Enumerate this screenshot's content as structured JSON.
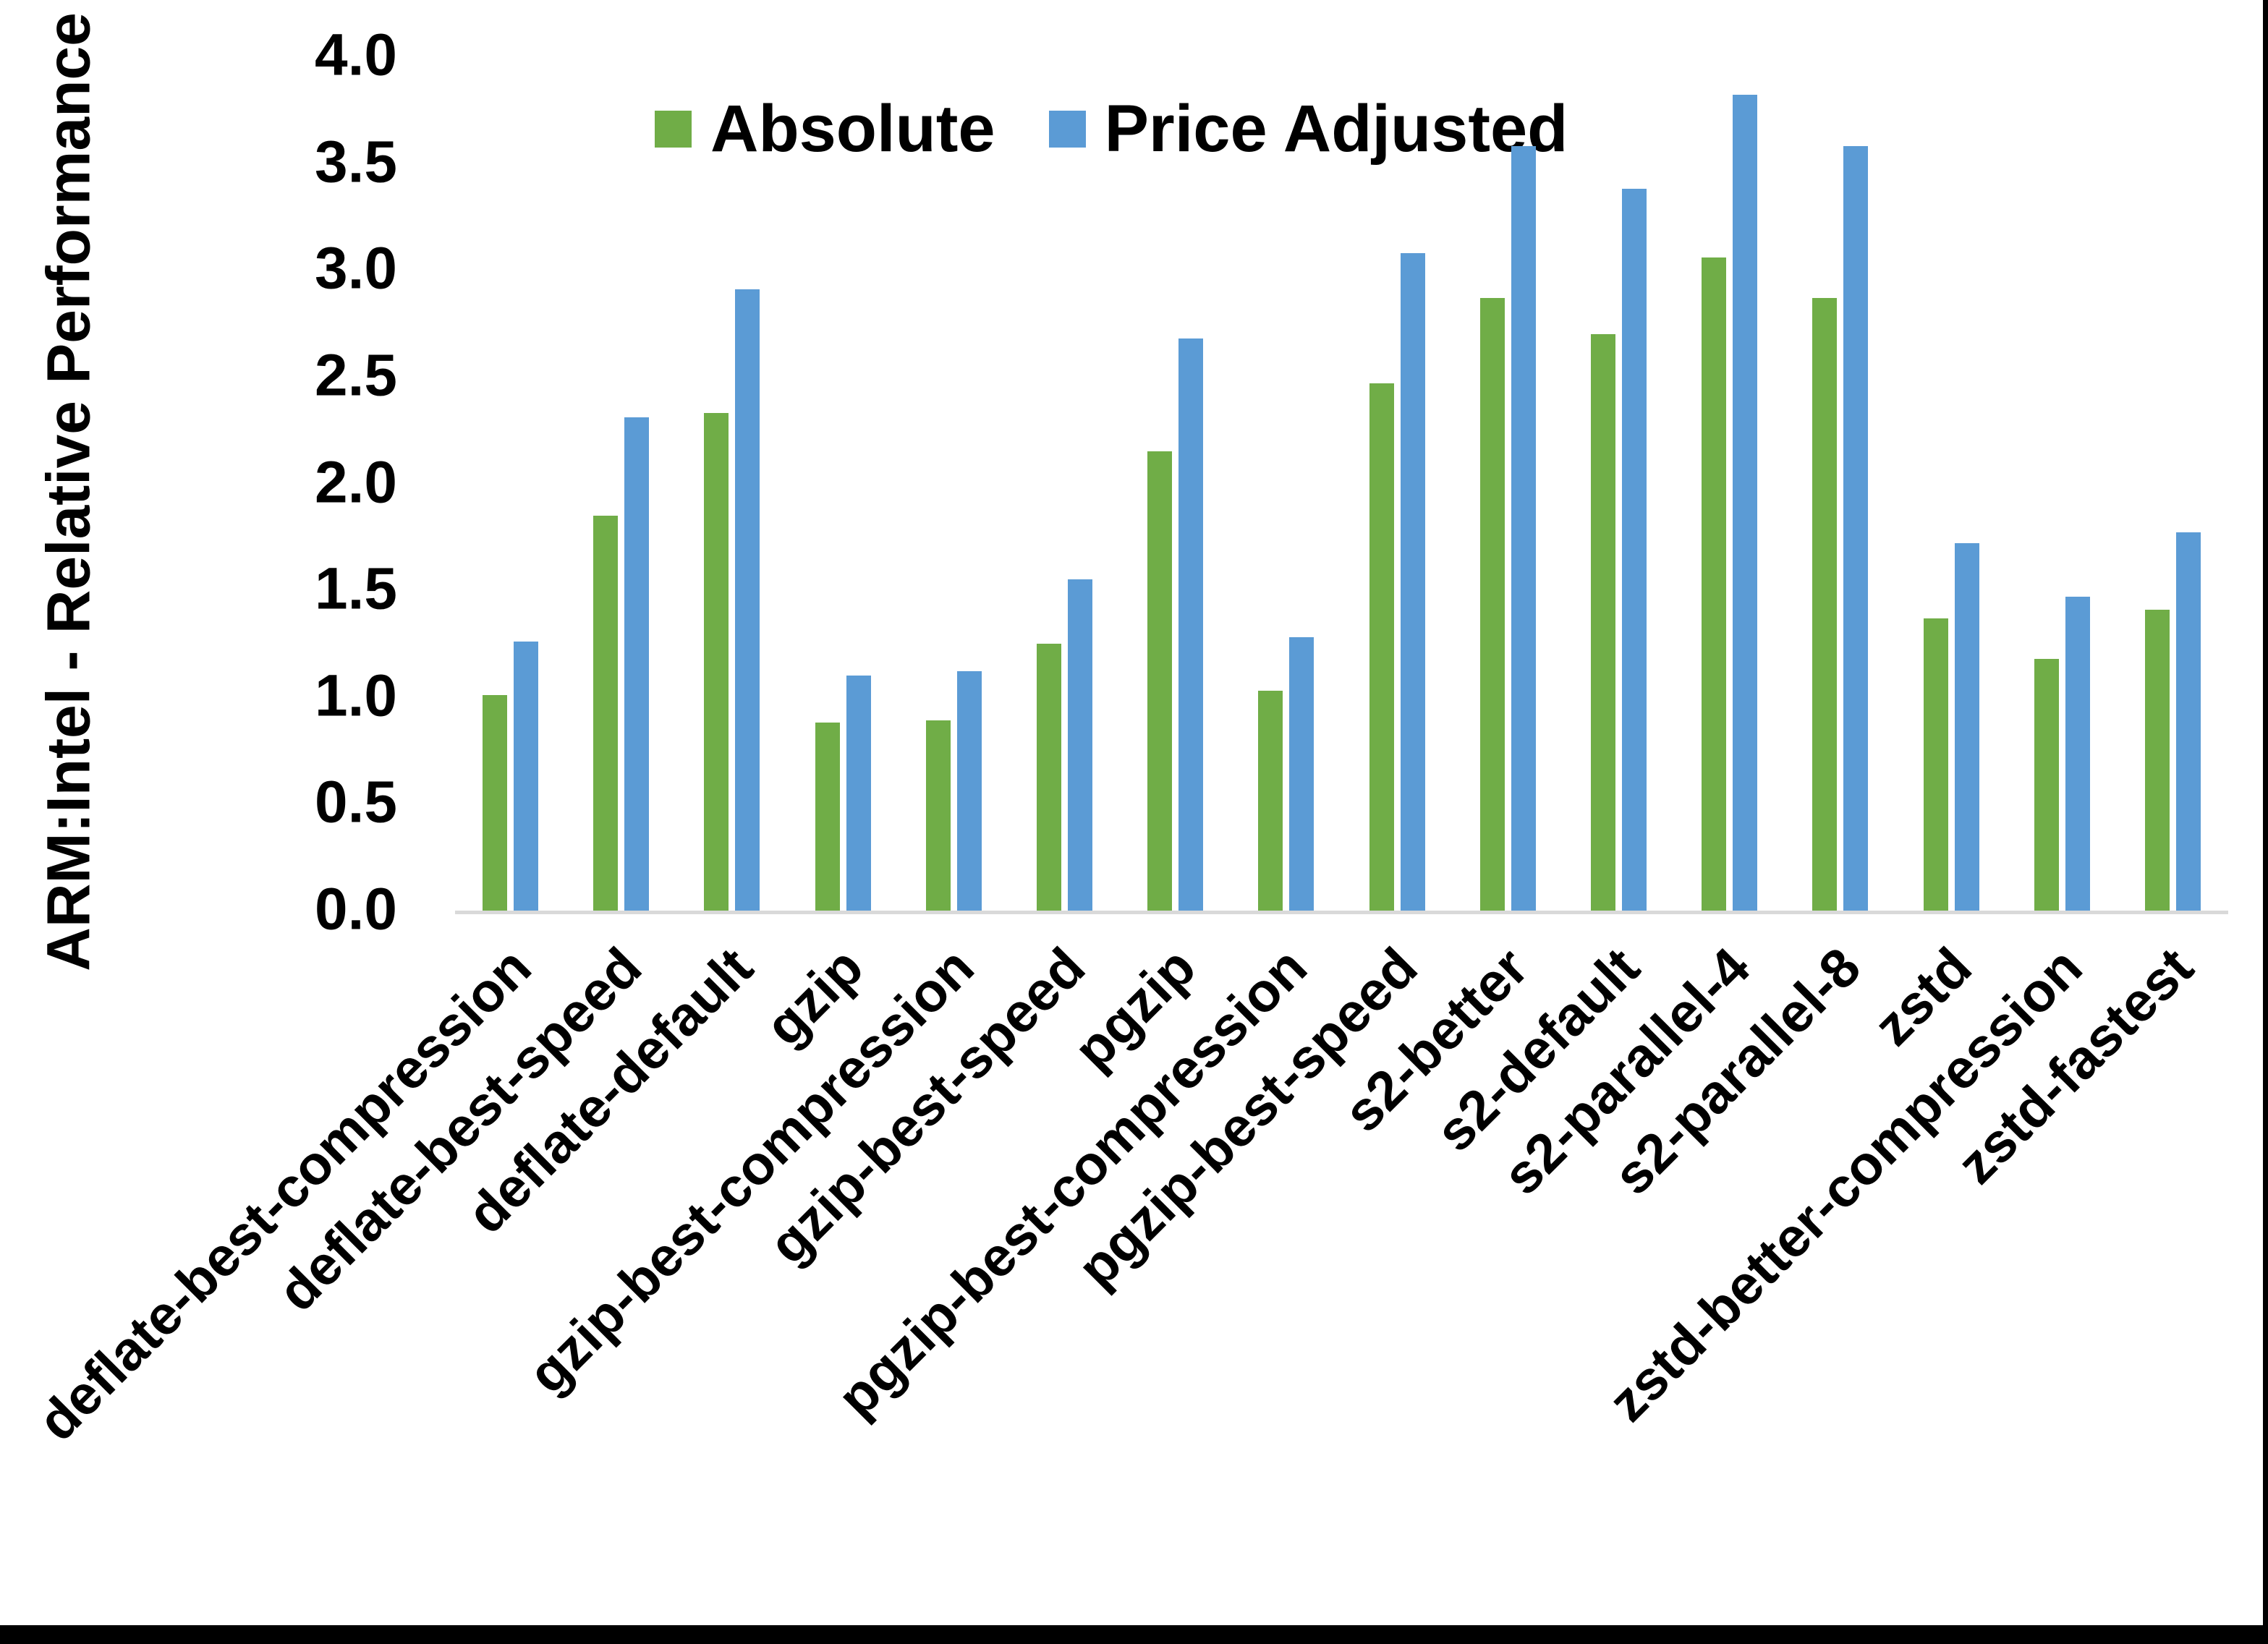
{
  "chart_data": {
    "type": "bar",
    "title": "",
    "ylabel": "ARM:Intel - Relative Performance",
    "xlabel": "",
    "ylim": [
      0,
      4.0
    ],
    "ytick_step": 0.5,
    "ytick_labels": [
      "4.0",
      "3.5",
      "3.0",
      "2.5",
      "2.0",
      "1.5",
      "1.0",
      "0.5",
      "0.0"
    ],
    "grid": false,
    "legend_position": "top-center",
    "categories": [
      "deflate-best-compression",
      "deflate-best-speed",
      "deflate-default",
      "gzip",
      "gzip-best-compression",
      "gzip-best-speed",
      "pgzip",
      "pgzip-best-compression",
      "pgzip-best-speed",
      "s2-better",
      "s2-default",
      "s2-parallel-4",
      "s2-parallel-8",
      "zstd",
      "zstd-better-compression",
      "zstd-fastest"
    ],
    "series": [
      {
        "name": "Absolute",
        "color": "#70AD47",
        "values": [
          1.01,
          1.85,
          2.33,
          0.88,
          0.89,
          1.25,
          2.15,
          1.03,
          2.47,
          2.87,
          2.7,
          3.06,
          2.87,
          1.37,
          1.18,
          1.41
        ]
      },
      {
        "name": "Price Adjusted",
        "color": "#5B9BD5",
        "values": [
          1.26,
          2.31,
          2.91,
          1.1,
          1.12,
          1.55,
          2.68,
          1.28,
          3.08,
          3.58,
          3.38,
          3.82,
          3.58,
          1.72,
          1.47,
          1.77
        ]
      }
    ]
  },
  "colors": {
    "axis_line": "#D9D9D9",
    "text": "#000000",
    "background": "#FFFFFF",
    "frame": "#000000"
  }
}
